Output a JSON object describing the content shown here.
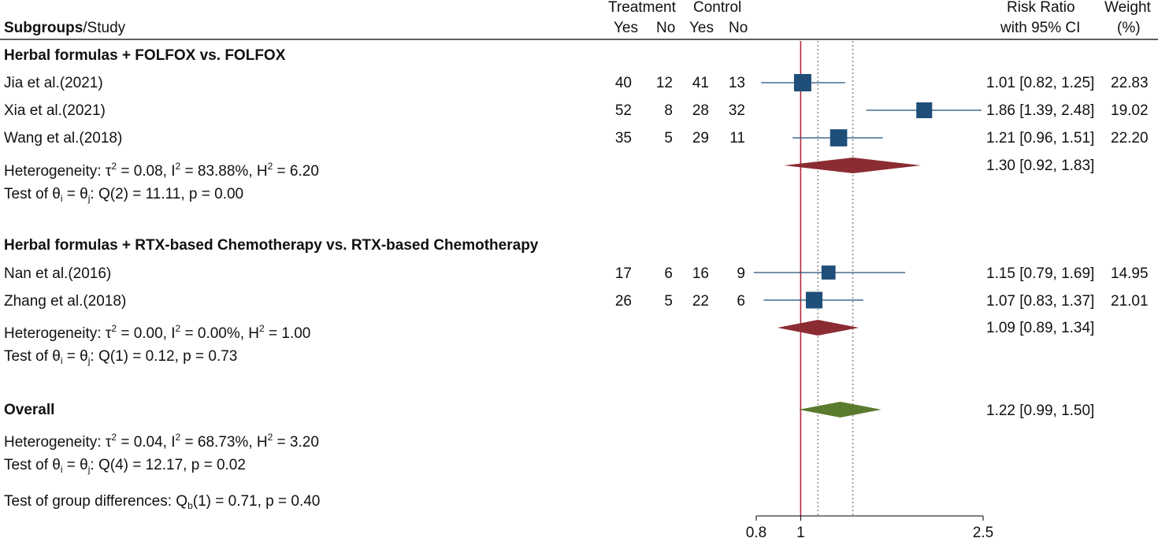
{
  "header": {
    "study_label_bold": "Subgroups",
    "study_label_rest": "/Study",
    "treatment": "Treatment",
    "control": "Control",
    "yes": "Yes",
    "no": "No",
    "rr_line1": "Risk Ratio",
    "rr_line2": "with 95% CI",
    "weight_line1": "Weight",
    "weight_line2": "(%)"
  },
  "groups": [
    {
      "title": "Herbal formulas + FOLFOX vs. FOLFOX",
      "heterogeneity": "Heterogeneity: τ² = 0.08, I² = 83.88%, H² = 6.20",
      "test": "Test of θi = θj: Q(2) = 11.11, p = 0.00",
      "summary_ci": "1.30 [0.92, 1.83]"
    },
    {
      "title": "Herbal formulas + RTX-based Chemotherapy vs. RTX-based Chemotherapy",
      "heterogeneity": "Heterogeneity: τ² = 0.00, I² = 0.00%, H² = 1.00",
      "test": "Test of θi = θj: Q(1) = 0.12, p = 0.73",
      "summary_ci": "1.09 [0.89, 1.34]"
    }
  ],
  "overall": {
    "title": "Overall",
    "heterogeneity": "Heterogeneity: τ² = 0.04, I² = 68.73%, H² = 3.20",
    "test": "Test of θi = θj: Q(4) = 12.17, p = 0.02",
    "summary_ci": "1.22 [0.99, 1.50]",
    "group_diff": "Test of group differences: Qb(1) = 0.71, p = 0.40"
  },
  "studies": [
    {
      "name": "Jia et al.(2021)",
      "t_yes": "40",
      "t_no": "12",
      "c_yes": "41",
      "c_no": "13",
      "ci": "1.01 [0.82, 1.25]",
      "weight": "22.83"
    },
    {
      "name": "Xia et al.(2021)",
      "t_yes": "52",
      "t_no": "8",
      "c_yes": "28",
      "c_no": "32",
      "ci": "1.86 [1.39, 2.48]",
      "weight": "19.02"
    },
    {
      "name": "Wang et al.(2018)",
      "t_yes": "35",
      "t_no": "5",
      "c_yes": "29",
      "c_no": "11",
      "ci": "1.21 [0.96, 1.51]",
      "weight": "22.20"
    },
    {
      "name": "Nan et al.(2016)",
      "t_yes": "17",
      "t_no": "6",
      "c_yes": "16",
      "c_no": "9",
      "ci": "1.15 [0.79, 1.69]",
      "weight": "14.95"
    },
    {
      "name": "Zhang et al.(2018)",
      "t_yes": "26",
      "t_no": "5",
      "c_yes": "22",
      "c_no": "6",
      "ci": "1.07 [0.83, 1.37]",
      "weight": "21.01"
    }
  ],
  "chart_data": {
    "type": "forest",
    "xscale": "log",
    "xlim": [
      0.8,
      2.5
    ],
    "xticks": [
      "0.8",
      "1",
      "2.5"
    ],
    "null_line": 1,
    "subgroup_reference_lines": [
      1.09,
      1.3
    ],
    "studies": [
      {
        "name": "Jia et al.(2021)",
        "rr": 1.01,
        "lo": 0.82,
        "hi": 1.25,
        "weight": 22.83
      },
      {
        "name": "Xia et al.(2021)",
        "rr": 1.86,
        "lo": 1.39,
        "hi": 2.48,
        "weight": 19.02
      },
      {
        "name": "Wang et al.(2018)",
        "rr": 1.21,
        "lo": 0.96,
        "hi": 1.51,
        "weight": 22.2
      },
      {
        "name": "Nan et al.(2016)",
        "rr": 1.15,
        "lo": 0.79,
        "hi": 1.69,
        "weight": 14.95
      },
      {
        "name": "Zhang et al.(2018)",
        "rr": 1.07,
        "lo": 0.83,
        "hi": 1.37,
        "weight": 21.01
      }
    ],
    "subgroup_summaries": [
      {
        "group": "Herbal formulas + FOLFOX vs. FOLFOX",
        "rr": 1.3,
        "lo": 0.92,
        "hi": 1.83
      },
      {
        "group": "Herbal formulas + RTX-based Chemotherapy vs. RTX-based Chemotherapy",
        "rr": 1.09,
        "lo": 0.89,
        "hi": 1.34
      }
    ],
    "overall": {
      "rr": 1.22,
      "lo": 0.99,
      "hi": 1.5
    },
    "colors": {
      "study_marker": "#1f4e79",
      "subgroup_diamond": "#8b2c33",
      "overall_diamond": "#5a7a2e",
      "null_line": "#b0283c"
    }
  }
}
